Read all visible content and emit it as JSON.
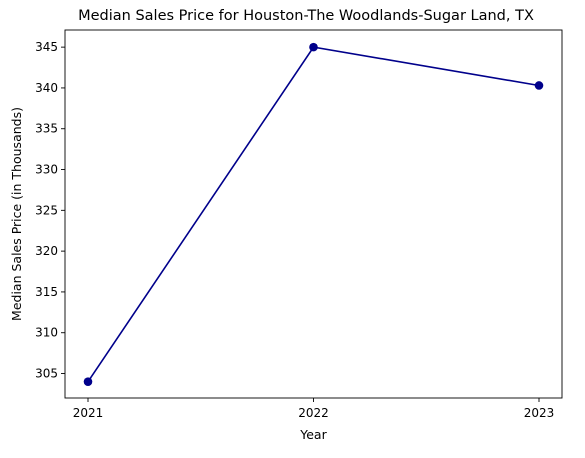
{
  "chart_data": {
    "type": "line",
    "title": "Median Sales Price for Houston-The Woodlands-Sugar Land, TX",
    "xlabel": "Year",
    "ylabel": "Median Sales Price (in Thousands)",
    "categories": [
      "2021",
      "2022",
      "2023"
    ],
    "values": [
      304.0,
      345.0,
      340.3
    ],
    "yticks": [
      305,
      310,
      315,
      320,
      325,
      330,
      335,
      340,
      345
    ],
    "ylim": [
      302.0,
      347.1
    ],
    "grid": false,
    "line_color": "#00008b",
    "marker": "circle"
  }
}
